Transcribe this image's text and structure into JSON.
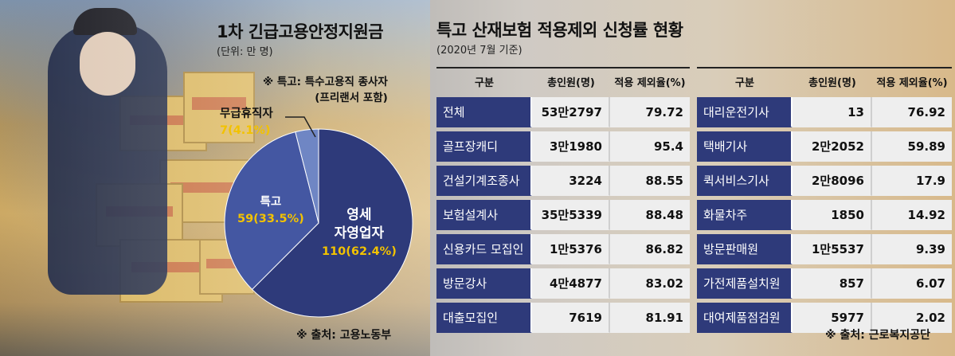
{
  "left": {
    "title": "1차 긴급고용안정지원금",
    "unit": "(단위: 만 명)",
    "note_line1": "※ 특고: 특수고용직 종사자",
    "note_line2": "(프리랜서 포함)",
    "source": "※ 출처: 고용노동부"
  },
  "right": {
    "title": "특고 산재보험 적용제외 신청률 현황",
    "subtitle": "(2020년 7월 기준)",
    "source": "※ 출처: 근로복지공단"
  },
  "colors": {
    "pie_main": "#2e3a7a",
    "pie_second": "#4457a2",
    "pie_third": "#6f86c4",
    "label_yellow": "#f2c200",
    "cell_blue": "#2e3a7a",
    "cell_grey": "#eeeeee"
  },
  "chart_data": [
    {
      "type": "pie",
      "title": "1차 긴급고용안정지원금",
      "unit": "(단위: 만 명)",
      "slices": [
        {
          "name": "영세 자영업자",
          "name_line1": "영세",
          "name_line2": "자영업자",
          "value": 110,
          "label": "110(62.4%)"
        },
        {
          "name": "특고",
          "value": 59,
          "label": "59(33.5%)"
        },
        {
          "name": "무급휴직자",
          "value": 7,
          "label": "7(4.1%)"
        }
      ]
    },
    {
      "type": "table",
      "title": "특고 산재보험 적용제외 신청률 현황",
      "subtitle": "(2020년 7월 기준)",
      "columns": [
        "구분",
        "총인원(명)",
        "적용 제외율(%)"
      ],
      "rows_left": [
        [
          "전체",
          "53만2797",
          "79.72"
        ],
        [
          "골프장캐디",
          "3만1980",
          "95.4"
        ],
        [
          "건설기계조종사",
          "3224",
          "88.55"
        ],
        [
          "보험설계사",
          "35만5339",
          "88.48"
        ],
        [
          "신용카드 모집인",
          "1만5376",
          "86.82"
        ],
        [
          "방문강사",
          "4만4877",
          "83.02"
        ],
        [
          "대출모집인",
          "7619",
          "81.91"
        ]
      ],
      "rows_right": [
        [
          "대리운전기사",
          "13",
          "76.92"
        ],
        [
          "택배기사",
          "2만2052",
          "59.89"
        ],
        [
          "퀵서비스기사",
          "2만8096",
          "17.9"
        ],
        [
          "화물차주",
          "1850",
          "14.92"
        ],
        [
          "방문판매원",
          "1만5537",
          "9.39"
        ],
        [
          "가전제품설치원",
          "857",
          "6.07"
        ],
        [
          "대여제품점검원",
          "5977",
          "2.02"
        ]
      ]
    }
  ]
}
